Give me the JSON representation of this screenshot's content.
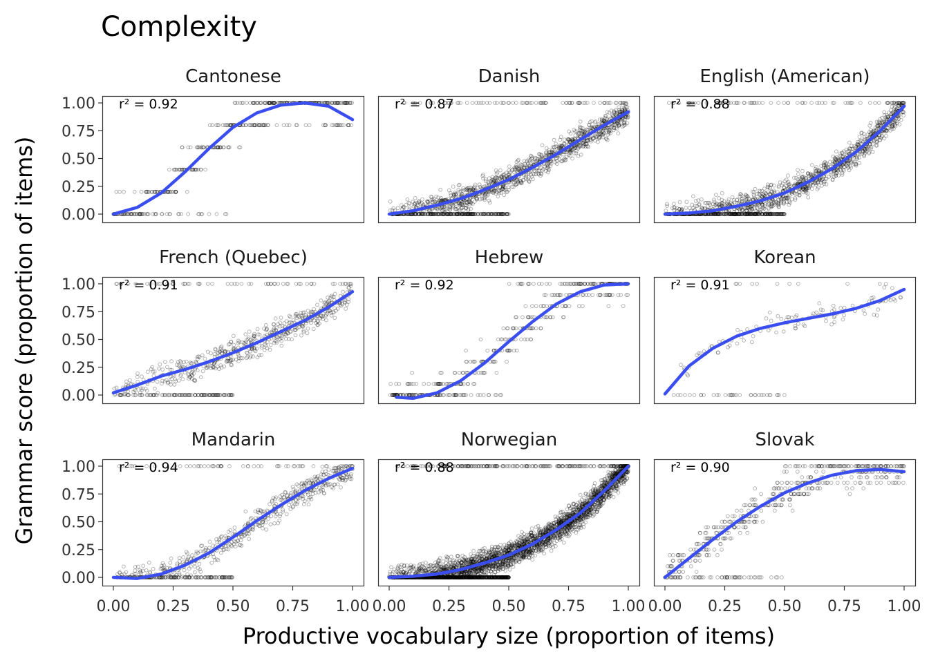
{
  "chart_data": {
    "type": "scatter",
    "title": "Complexity",
    "xlabel": "Productive vocabulary size (proportion of items)",
    "ylabel": "Grammar score (proportion of items)",
    "xlim": [
      0,
      1
    ],
    "ylim": [
      0,
      1
    ],
    "x_ticks": [
      "0.00",
      "0.25",
      "0.50",
      "0.75",
      "1.00"
    ],
    "y_ticks": [
      "0.00",
      "0.25",
      "0.50",
      "0.75",
      "1.00"
    ],
    "grid": false,
    "point_style": "open circles, translucent black",
    "line_color": "#3a4ef0",
    "panels": [
      {
        "name": "Cantonese",
        "r2": "r² = 0.92",
        "pattern": "discrete5",
        "density": 420,
        "fit": [
          [
            0.0,
            0.0
          ],
          [
            0.1,
            0.06
          ],
          [
            0.2,
            0.19
          ],
          [
            0.3,
            0.38
          ],
          [
            0.4,
            0.59
          ],
          [
            0.5,
            0.78
          ],
          [
            0.6,
            0.91
          ],
          [
            0.7,
            0.98
          ],
          [
            0.8,
            1.0
          ],
          [
            0.9,
            0.97
          ],
          [
            1.0,
            0.85
          ]
        ]
      },
      {
        "name": "Danish",
        "r2": "r² = 0.87",
        "pattern": "continuous",
        "density": 1500,
        "fit": [
          [
            0.0,
            0.0
          ],
          [
            0.1,
            0.03
          ],
          [
            0.2,
            0.08
          ],
          [
            0.3,
            0.14
          ],
          [
            0.4,
            0.22
          ],
          [
            0.5,
            0.31
          ],
          [
            0.6,
            0.42
          ],
          [
            0.7,
            0.54
          ],
          [
            0.8,
            0.67
          ],
          [
            0.9,
            0.8
          ],
          [
            1.0,
            0.92
          ]
        ]
      },
      {
        "name": "English (American)",
        "r2": "r² = 0.88",
        "pattern": "continuous",
        "density": 1500,
        "fit": [
          [
            0.0,
            0.0
          ],
          [
            0.1,
            0.01
          ],
          [
            0.2,
            0.03
          ],
          [
            0.3,
            0.07
          ],
          [
            0.4,
            0.12
          ],
          [
            0.5,
            0.19
          ],
          [
            0.6,
            0.29
          ],
          [
            0.7,
            0.41
          ],
          [
            0.8,
            0.56
          ],
          [
            0.9,
            0.75
          ],
          [
            1.0,
            0.97
          ]
        ]
      },
      {
        "name": "French (Quebec)",
        "r2": "r² = 0.91",
        "pattern": "continuous",
        "density": 700,
        "fit": [
          [
            0.0,
            0.02
          ],
          [
            0.1,
            0.09
          ],
          [
            0.2,
            0.17
          ],
          [
            0.3,
            0.23
          ],
          [
            0.4,
            0.3
          ],
          [
            0.5,
            0.38
          ],
          [
            0.6,
            0.47
          ],
          [
            0.7,
            0.57
          ],
          [
            0.8,
            0.67
          ],
          [
            0.9,
            0.79
          ],
          [
            1.0,
            0.93
          ]
        ]
      },
      {
        "name": "Hebrew",
        "r2": "r² = 0.92",
        "pattern": "discrete10",
        "density": 420,
        "fit": [
          [
            0.03,
            -0.02
          ],
          [
            0.1,
            -0.03
          ],
          [
            0.2,
            0.02
          ],
          [
            0.3,
            0.13
          ],
          [
            0.4,
            0.29
          ],
          [
            0.5,
            0.48
          ],
          [
            0.6,
            0.66
          ],
          [
            0.7,
            0.82
          ],
          [
            0.8,
            0.93
          ],
          [
            0.9,
            0.99
          ],
          [
            1.0,
            1.0
          ]
        ]
      },
      {
        "name": "Korean",
        "r2": "r² = 0.91",
        "pattern": "continuous",
        "density": 150,
        "fit": [
          [
            0.0,
            0.01
          ],
          [
            0.1,
            0.26
          ],
          [
            0.2,
            0.42
          ],
          [
            0.3,
            0.53
          ],
          [
            0.4,
            0.6
          ],
          [
            0.5,
            0.65
          ],
          [
            0.6,
            0.69
          ],
          [
            0.7,
            0.73
          ],
          [
            0.8,
            0.78
          ],
          [
            0.9,
            0.85
          ],
          [
            1.0,
            0.95
          ]
        ]
      },
      {
        "name": "Mandarin",
        "r2": "r² = 0.94",
        "pattern": "continuous",
        "density": 700,
        "fit": [
          [
            0.0,
            0.0
          ],
          [
            0.1,
            -0.01
          ],
          [
            0.2,
            0.03
          ],
          [
            0.3,
            0.11
          ],
          [
            0.4,
            0.22
          ],
          [
            0.5,
            0.36
          ],
          [
            0.6,
            0.51
          ],
          [
            0.7,
            0.65
          ],
          [
            0.8,
            0.78
          ],
          [
            0.9,
            0.89
          ],
          [
            1.0,
            0.98
          ]
        ]
      },
      {
        "name": "Norwegian",
        "r2": "r² = 0.88",
        "pattern": "continuous",
        "density": 3500,
        "fit": [
          [
            0.0,
            0.0
          ],
          [
            0.1,
            0.01
          ],
          [
            0.2,
            0.03
          ],
          [
            0.3,
            0.07
          ],
          [
            0.4,
            0.13
          ],
          [
            0.5,
            0.2
          ],
          [
            0.6,
            0.3
          ],
          [
            0.7,
            0.43
          ],
          [
            0.8,
            0.58
          ],
          [
            0.9,
            0.78
          ],
          [
            1.0,
            1.0
          ]
        ]
      },
      {
        "name": "Slovak",
        "r2": "r² = 0.90",
        "pattern": "discrete20",
        "density": 500,
        "fit": [
          [
            0.0,
            0.0
          ],
          [
            0.1,
            0.17
          ],
          [
            0.2,
            0.34
          ],
          [
            0.3,
            0.5
          ],
          [
            0.4,
            0.64
          ],
          [
            0.5,
            0.76
          ],
          [
            0.6,
            0.85
          ],
          [
            0.7,
            0.92
          ],
          [
            0.8,
            0.96
          ],
          [
            0.9,
            0.97
          ],
          [
            1.0,
            0.95
          ]
        ]
      }
    ]
  }
}
